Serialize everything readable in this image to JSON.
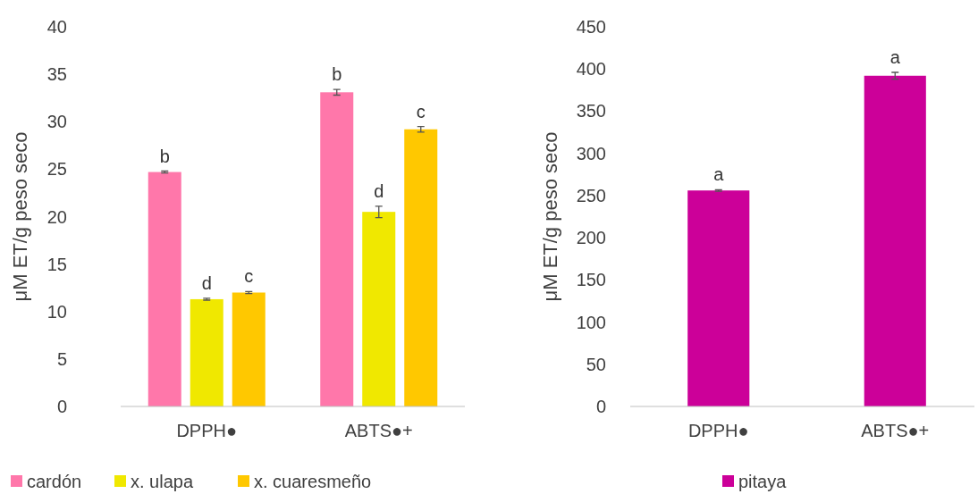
{
  "chart_data": [
    {
      "type": "bar",
      "ylabel": "μM ET/g peso seco",
      "categories": [
        "DPPH●",
        "ABTS●+"
      ],
      "ylim": [
        0,
        40
      ],
      "yticks": [
        0,
        5,
        10,
        15,
        20,
        25,
        30,
        35,
        40
      ],
      "grid": false,
      "legend": "bottom",
      "series": [
        {
          "name": "cardón",
          "color": "#ff77aa",
          "values": [
            24.7,
            33.1
          ],
          "errors": [
            0.1,
            0.3
          ],
          "value_labels": [
            "b",
            "b"
          ]
        },
        {
          "name": "x. ulapa",
          "color": "#f0e800",
          "values": [
            11.3,
            20.5
          ],
          "errors": [
            0.1,
            0.6
          ],
          "value_labels": [
            "d",
            "d"
          ]
        },
        {
          "name": "x. cuaresmeño",
          "color": "#ffc800",
          "values": [
            12.0,
            29.2
          ],
          "errors": [
            0.1,
            0.3
          ],
          "value_labels": [
            "c",
            "c"
          ]
        }
      ]
    },
    {
      "type": "bar",
      "ylabel": "μM ET/g peso seco",
      "categories": [
        "DPPH●",
        "ABTS●+"
      ],
      "ylim": [
        0,
        450
      ],
      "yticks": [
        0,
        50,
        100,
        150,
        200,
        250,
        300,
        350,
        400,
        450
      ],
      "grid": false,
      "legend": "bottom",
      "series": [
        {
          "name": "pitaya",
          "color": "#cc0099",
          "values": [
            256,
            392
          ],
          "errors": [
            1,
            4
          ],
          "value_labels": [
            "a",
            "a"
          ]
        }
      ]
    }
  ]
}
